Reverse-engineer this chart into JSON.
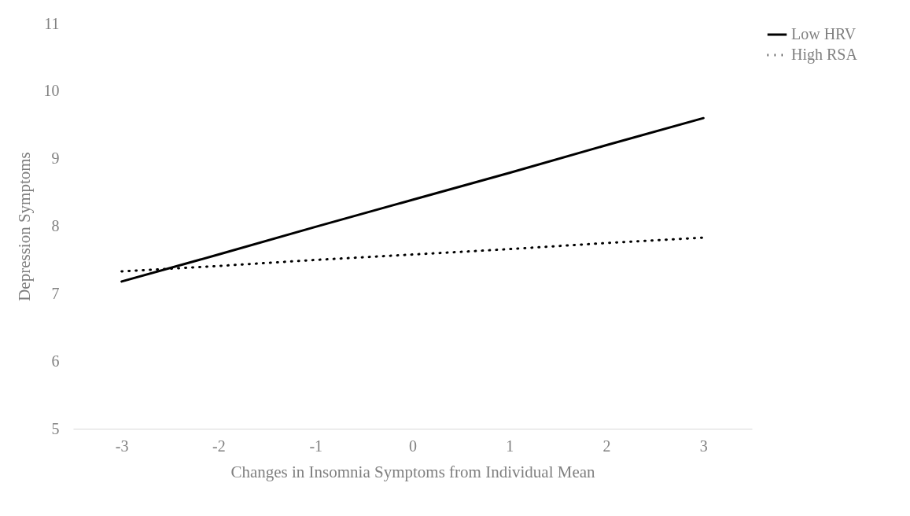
{
  "chart_data": {
    "type": "line",
    "xlabel": "Changes in Insomnia Symptoms from Individual Mean",
    "ylabel": "Depression Symptoms",
    "categories": [
      "-3",
      "-2",
      "-1",
      "0",
      "1",
      "2",
      "3"
    ],
    "series": [
      {
        "name": "Low HRV",
        "color": "#000000",
        "line_style": "solid",
        "values": [
          7.18,
          7.58,
          7.99,
          8.39,
          8.79,
          9.2,
          9.6
        ]
      },
      {
        "name": "High RSA",
        "color": "#000000",
        "line_style": "dotted",
        "values": [
          7.33,
          7.41,
          7.5,
          7.58,
          7.66,
          7.75,
          7.83
        ]
      }
    ],
    "ylim": [
      5,
      11
    ],
    "yticks": [
      5,
      6,
      7,
      8,
      9,
      10,
      11
    ],
    "grid": false,
    "legend": "right",
    "marker": "none"
  }
}
